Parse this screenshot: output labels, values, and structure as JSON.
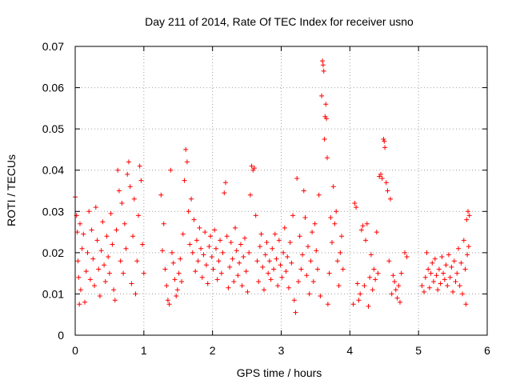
{
  "chart_data": {
    "type": "scatter",
    "title": "Day 211 of 2014, Rate Of TEC Index for receiver usno",
    "xlabel": "GPS time / hours",
    "ylabel": "ROTI / TECUs",
    "xlim": [
      0,
      6
    ],
    "ylim": [
      0,
      0.07
    ],
    "xticks": [
      "0",
      "1",
      "2",
      "3",
      "4",
      "5",
      "6"
    ],
    "yticks": [
      "0",
      "0.01",
      "0.02",
      "0.03",
      "0.04",
      "0.05",
      "0.06",
      "0.07"
    ],
    "grid": true,
    "marker": "+",
    "color": "#ff0000",
    "series": [
      {
        "name": "ROTI",
        "points": [
          [
            0.0,
            0.0335
          ],
          [
            0.02,
            0.029
          ],
          [
            0.03,
            0.025
          ],
          [
            0.04,
            0.018
          ],
          [
            0.05,
            0.014
          ],
          [
            0.06,
            0.0075
          ],
          [
            0.07,
            0.027
          ],
          [
            0.08,
            0.011
          ],
          [
            0.1,
            0.021
          ],
          [
            0.12,
            0.0245
          ],
          [
            0.14,
            0.008
          ],
          [
            0.16,
            0.0155
          ],
          [
            0.18,
            0.02
          ],
          [
            0.2,
            0.03
          ],
          [
            0.22,
            0.0135
          ],
          [
            0.24,
            0.0255
          ],
          [
            0.26,
            0.0185
          ],
          [
            0.28,
            0.012
          ],
          [
            0.3,
            0.031
          ],
          [
            0.32,
            0.023
          ],
          [
            0.34,
            0.016
          ],
          [
            0.36,
            0.0095
          ],
          [
            0.38,
            0.0205
          ],
          [
            0.4,
            0.0275
          ],
          [
            0.42,
            0.017
          ],
          [
            0.44,
            0.013
          ],
          [
            0.46,
            0.024
          ],
          [
            0.48,
            0.019
          ],
          [
            0.5,
            0.015
          ],
          [
            0.52,
            0.0295
          ],
          [
            0.54,
            0.022
          ],
          [
            0.56,
            0.011
          ],
          [
            0.58,
            0.0085
          ],
          [
            0.6,
            0.0255
          ],
          [
            0.62,
            0.04
          ],
          [
            0.64,
            0.035
          ],
          [
            0.66,
            0.018
          ],
          [
            0.68,
            0.032
          ],
          [
            0.7,
            0.015
          ],
          [
            0.72,
            0.027
          ],
          [
            0.74,
            0.021
          ],
          [
            0.76,
            0.039
          ],
          [
            0.78,
            0.042
          ],
          [
            0.8,
            0.036
          ],
          [
            0.82,
            0.0125
          ],
          [
            0.84,
            0.024
          ],
          [
            0.86,
            0.033
          ],
          [
            0.88,
            0.01
          ],
          [
            0.9,
            0.018
          ],
          [
            0.92,
            0.029
          ],
          [
            0.94,
            0.041
          ],
          [
            0.96,
            0.0375
          ],
          [
            0.98,
            0.022
          ],
          [
            1.0,
            0.015
          ],
          [
            1.25,
            0.034
          ],
          [
            1.27,
            0.0205
          ],
          [
            1.29,
            0.027
          ],
          [
            1.31,
            0.016
          ],
          [
            1.33,
            0.012
          ],
          [
            1.35,
            0.0085
          ],
          [
            1.37,
            0.0075
          ],
          [
            1.39,
            0.04
          ],
          [
            1.41,
            0.02
          ],
          [
            1.43,
            0.0175
          ],
          [
            1.45,
            0.0135
          ],
          [
            1.47,
            0.0095
          ],
          [
            1.49,
            0.011
          ],
          [
            1.51,
            0.015
          ],
          [
            1.53,
            0.0185
          ],
          [
            1.55,
            0.013
          ],
          [
            1.57,
            0.0245
          ],
          [
            1.59,
            0.0375
          ],
          [
            1.61,
            0.045
          ],
          [
            1.63,
            0.042
          ],
          [
            1.65,
            0.03
          ],
          [
            1.67,
            0.022
          ],
          [
            1.69,
            0.033
          ],
          [
            1.71,
            0.02
          ],
          [
            1.73,
            0.028
          ],
          [
            1.75,
            0.0155
          ],
          [
            1.77,
            0.023
          ],
          [
            1.79,
            0.018
          ],
          [
            1.81,
            0.026
          ],
          [
            1.83,
            0.021
          ],
          [
            1.85,
            0.014
          ],
          [
            1.87,
            0.0195
          ],
          [
            1.89,
            0.025
          ],
          [
            1.91,
            0.017
          ],
          [
            1.93,
            0.0125
          ],
          [
            1.95,
            0.0215
          ],
          [
            1.97,
            0.024
          ],
          [
            1.99,
            0.019
          ],
          [
            2.01,
            0.016
          ],
          [
            2.03,
            0.0255
          ],
          [
            2.05,
            0.021
          ],
          [
            2.07,
            0.0135
          ],
          [
            2.09,
            0.018
          ],
          [
            2.11,
            0.023
          ],
          [
            2.13,
            0.015
          ],
          [
            2.15,
            0.02
          ],
          [
            2.17,
            0.0345
          ],
          [
            2.19,
            0.037
          ],
          [
            2.21,
            0.024
          ],
          [
            2.23,
            0.0115
          ],
          [
            2.25,
            0.0165
          ],
          [
            2.27,
            0.0225
          ],
          [
            2.29,
            0.0185
          ],
          [
            2.31,
            0.013
          ],
          [
            2.33,
            0.026
          ],
          [
            2.35,
            0.0205
          ],
          [
            2.37,
            0.0145
          ],
          [
            2.39,
            0.0175
          ],
          [
            2.41,
            0.022
          ],
          [
            2.43,
            0.012
          ],
          [
            2.45,
            0.019
          ],
          [
            2.47,
            0.0235
          ],
          [
            2.49,
            0.0155
          ],
          [
            2.51,
            0.0105
          ],
          [
            2.53,
            0.02
          ],
          [
            2.55,
            0.034
          ],
          [
            2.57,
            0.041
          ],
          [
            2.59,
            0.04
          ],
          [
            2.61,
            0.0405
          ],
          [
            2.63,
            0.029
          ],
          [
            2.65,
            0.018
          ],
          [
            2.67,
            0.013
          ],
          [
            2.69,
            0.0215
          ],
          [
            2.71,
            0.0245
          ],
          [
            2.73,
            0.0165
          ],
          [
            2.75,
            0.011
          ],
          [
            2.77,
            0.0195
          ],
          [
            2.79,
            0.0225
          ],
          [
            2.81,
            0.015
          ],
          [
            2.83,
            0.018
          ],
          [
            2.85,
            0.0135
          ],
          [
            2.87,
            0.021
          ],
          [
            2.89,
            0.016
          ],
          [
            2.91,
            0.0245
          ],
          [
            2.93,
            0.0185
          ],
          [
            2.95,
            0.012
          ],
          [
            2.97,
            0.023
          ],
          [
            2.99,
            0.017
          ],
          [
            3.01,
            0.014
          ],
          [
            3.03,
            0.02
          ],
          [
            3.05,
            0.026
          ],
          [
            3.07,
            0.0155
          ],
          [
            3.09,
            0.019
          ],
          [
            3.11,
            0.0115
          ],
          [
            3.13,
            0.0225
          ],
          [
            3.15,
            0.0175
          ],
          [
            3.17,
            0.029
          ],
          [
            3.19,
            0.0085
          ],
          [
            3.21,
            0.0055
          ],
          [
            3.23,
            0.038
          ],
          [
            3.25,
            0.013
          ],
          [
            3.27,
            0.024
          ],
          [
            3.29,
            0.016
          ],
          [
            3.31,
            0.0195
          ],
          [
            3.33,
            0.035
          ],
          [
            3.35,
            0.0285
          ],
          [
            3.37,
            0.0145
          ],
          [
            3.39,
            0.0215
          ],
          [
            3.41,
            0.01
          ],
          [
            3.43,
            0.018
          ],
          [
            3.45,
            0.025
          ],
          [
            3.47,
            0.013
          ],
          [
            3.49,
            0.027
          ],
          [
            3.51,
            0.0205
          ],
          [
            3.53,
            0.016
          ],
          [
            3.55,
            0.034
          ],
          [
            3.57,
            0.0095
          ],
          [
            3.59,
            0.058
          ],
          [
            3.6,
            0.0665
          ],
          [
            3.61,
            0.0655
          ],
          [
            3.62,
            0.064
          ],
          [
            3.63,
            0.0475
          ],
          [
            3.64,
            0.053
          ],
          [
            3.65,
            0.056
          ],
          [
            3.66,
            0.0525
          ],
          [
            3.67,
            0.043
          ],
          [
            3.68,
            0.0075
          ],
          [
            3.7,
            0.015
          ],
          [
            3.72,
            0.0285
          ],
          [
            3.74,
            0.0225
          ],
          [
            3.76,
            0.036
          ],
          [
            3.78,
            0.027
          ],
          [
            3.8,
            0.03
          ],
          [
            3.82,
            0.018
          ],
          [
            3.84,
            0.012
          ],
          [
            3.86,
            0.02
          ],
          [
            3.88,
            0.024
          ],
          [
            3.9,
            0.016
          ],
          [
            4.05,
            0.0075
          ],
          [
            4.07,
            0.032
          ],
          [
            4.09,
            0.031
          ],
          [
            4.11,
            0.0125
          ],
          [
            4.13,
            0.0085
          ],
          [
            4.15,
            0.01
          ],
          [
            4.17,
            0.0255
          ],
          [
            4.19,
            0.0265
          ],
          [
            4.21,
            0.012
          ],
          [
            4.23,
            0.023
          ],
          [
            4.25,
            0.027
          ],
          [
            4.27,
            0.007
          ],
          [
            4.29,
            0.014
          ],
          [
            4.31,
            0.0195
          ],
          [
            4.33,
            0.011
          ],
          [
            4.35,
            0.016
          ],
          [
            4.37,
            0.0135
          ],
          [
            4.39,
            0.025
          ],
          [
            4.41,
            0.015
          ],
          [
            4.43,
            0.0385
          ],
          [
            4.45,
            0.039
          ],
          [
            4.47,
            0.038
          ],
          [
            4.49,
            0.0475
          ],
          [
            4.5,
            0.047
          ],
          [
            4.51,
            0.0455
          ],
          [
            4.53,
            0.037
          ],
          [
            4.55,
            0.035
          ],
          [
            4.57,
            0.018
          ],
          [
            4.59,
            0.033
          ],
          [
            4.61,
            0.01
          ],
          [
            4.63,
            0.0145
          ],
          [
            4.65,
            0.013
          ],
          [
            4.67,
            0.011
          ],
          [
            4.69,
            0.009
          ],
          [
            4.71,
            0.012
          ],
          [
            4.73,
            0.008
          ],
          [
            4.75,
            0.015
          ],
          [
            4.8,
            0.02
          ],
          [
            4.83,
            0.019
          ],
          [
            5.05,
            0.012
          ],
          [
            5.08,
            0.0105
          ],
          [
            5.1,
            0.014
          ],
          [
            5.12,
            0.02
          ],
          [
            5.14,
            0.016
          ],
          [
            5.16,
            0.0115
          ],
          [
            5.18,
            0.015
          ],
          [
            5.2,
            0.0175
          ],
          [
            5.22,
            0.013
          ],
          [
            5.24,
            0.0185
          ],
          [
            5.26,
            0.0145
          ],
          [
            5.28,
            0.011
          ],
          [
            5.3,
            0.016
          ],
          [
            5.32,
            0.0125
          ],
          [
            5.34,
            0.019
          ],
          [
            5.36,
            0.015
          ],
          [
            5.38,
            0.0135
          ],
          [
            5.4,
            0.017
          ],
          [
            5.42,
            0.012
          ],
          [
            5.44,
            0.0195
          ],
          [
            5.46,
            0.014
          ],
          [
            5.48,
            0.0165
          ],
          [
            5.5,
            0.0105
          ],
          [
            5.52,
            0.018
          ],
          [
            5.54,
            0.013
          ],
          [
            5.56,
            0.015
          ],
          [
            5.58,
            0.021
          ],
          [
            5.6,
            0.012
          ],
          [
            5.62,
            0.0175
          ],
          [
            5.64,
            0.01
          ],
          [
            5.66,
            0.023
          ],
          [
            5.68,
            0.016
          ],
          [
            5.69,
            0.0075
          ],
          [
            5.7,
            0.028
          ],
          [
            5.71,
            0.0195
          ],
          [
            5.72,
            0.03
          ],
          [
            5.73,
            0.0215
          ],
          [
            5.74,
            0.029
          ]
        ]
      }
    ]
  }
}
